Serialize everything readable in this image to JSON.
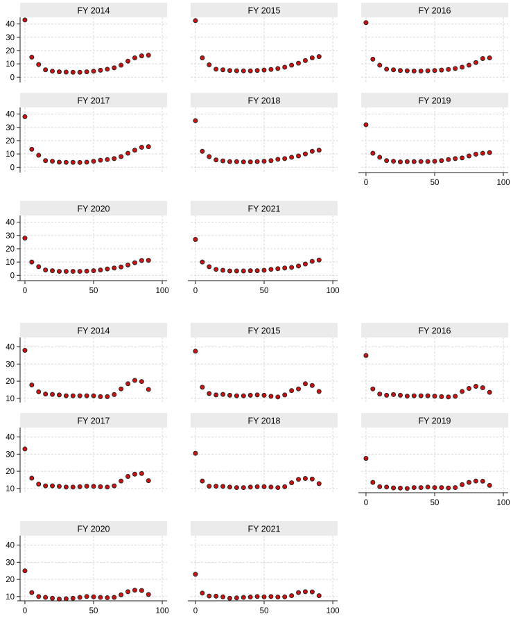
{
  "page": {
    "background": "#ffffff"
  },
  "style": {
    "marker_fill": "#cc1111",
    "marker_stroke": "#262626",
    "marker_radius": 3,
    "grid_color": "#d9d9d9",
    "axis_color": "#1a1a1a",
    "title_bg": "#ebebeb",
    "title_color": "#000000",
    "tick_label_color": "#000000"
  },
  "chart_data": [
    {
      "type": "scatter",
      "name": "panel-1",
      "x": [
        0,
        5,
        10,
        15,
        20,
        25,
        30,
        35,
        40,
        45,
        50,
        55,
        60,
        65,
        70,
        75,
        80,
        85,
        90
      ],
      "xlim": [
        -3.5,
        103.5
      ],
      "ylim": [
        -4,
        45
      ],
      "xticks": [
        0,
        50,
        100
      ],
      "yticks": [
        0,
        10,
        20,
        30,
        40
      ],
      "grid": true,
      "legend": null,
      "subplots": [
        {
          "title": "FY 2014",
          "y_axis": true,
          "x_axis": false,
          "values": [
            43,
            15,
            9.5,
            5.5,
            4.5,
            4,
            3.8,
            3.7,
            3.7,
            4,
            4.5,
            5.2,
            6,
            7,
            9,
            12,
            14.5,
            16,
            16.5
          ]
        },
        {
          "title": "FY 2015",
          "y_axis": false,
          "x_axis": false,
          "values": [
            42.5,
            14.5,
            9.3,
            6,
            5.5,
            5,
            4.8,
            4.7,
            4.7,
            5,
            5.3,
            5.8,
            6.5,
            7.5,
            9,
            10.5,
            12.5,
            14.5,
            15.5
          ]
        },
        {
          "title": "FY 2016",
          "y_axis": false,
          "x_axis": false,
          "values": [
            41,
            13.5,
            9,
            6,
            5.5,
            5,
            4.8,
            4.6,
            4.6,
            4.8,
            5,
            5.3,
            5.8,
            6.5,
            7.5,
            9,
            11,
            14,
            14.5
          ]
        },
        {
          "title": "FY 2017",
          "y_axis": true,
          "x_axis": false,
          "values": [
            38,
            13.5,
            9,
            5,
            4.5,
            3.8,
            3.7,
            3.7,
            3.6,
            3.8,
            4.5,
            5.3,
            5.8,
            6.5,
            8,
            10.5,
            12.8,
            15,
            15.5
          ]
        },
        {
          "title": "FY 2018",
          "y_axis": false,
          "x_axis": false,
          "values": [
            35,
            12,
            8,
            5.5,
            4.8,
            4.2,
            4.2,
            4,
            4,
            4.2,
            4.5,
            5,
            6,
            6.5,
            7.5,
            8.5,
            10,
            12,
            12.8
          ]
        },
        {
          "title": "FY 2019",
          "y_axis": false,
          "x_axis": true,
          "values": [
            32,
            10.5,
            7.5,
            5,
            4.5,
            4,
            4.2,
            4.2,
            4.3,
            4.3,
            4.5,
            5,
            5.8,
            6.5,
            7,
            8.5,
            9.8,
            10.5,
            11
          ]
        },
        {
          "title": "FY 2020",
          "y_axis": true,
          "x_axis": true,
          "values": [
            28,
            10,
            6.5,
            4,
            3.5,
            3,
            3,
            3,
            3,
            3.2,
            3.5,
            4,
            4.8,
            5.5,
            6.3,
            7.8,
            9.5,
            11.2,
            11.3
          ]
        },
        {
          "title": "FY 2021",
          "y_axis": false,
          "x_axis": true,
          "values": [
            27,
            10,
            6.5,
            4.5,
            3.8,
            3.3,
            3.3,
            3.3,
            3.5,
            3.5,
            3.8,
            4.5,
            5,
            5.5,
            6,
            7,
            8.5,
            10.5,
            11.5
          ]
        }
      ]
    },
    {
      "type": "scatter",
      "name": "panel-2",
      "x": [
        0,
        5,
        10,
        15,
        20,
        25,
        30,
        35,
        40,
        45,
        50,
        55,
        60,
        65,
        70,
        75,
        80,
        85,
        90
      ],
      "xlim": [
        -3.5,
        103.5
      ],
      "ylim": [
        7.5,
        45.5
      ],
      "xticks": [
        0,
        50,
        100
      ],
      "yticks": [
        10,
        20,
        30,
        40
      ],
      "grid": true,
      "legend": null,
      "subplots": [
        {
          "title": "FY 2014",
          "y_axis": true,
          "x_axis": false,
          "values": [
            38,
            17.8,
            13.8,
            12.5,
            12.3,
            12,
            11.5,
            11.5,
            11.5,
            11.5,
            11.5,
            11,
            11,
            12.2,
            15.5,
            18.5,
            20.5,
            19.8,
            15.2
          ]
        },
        {
          "title": "FY 2015",
          "y_axis": false,
          "x_axis": false,
          "values": [
            37.5,
            16.5,
            12.8,
            12,
            12.3,
            11.8,
            11.5,
            11.5,
            11.8,
            12,
            11.8,
            11.2,
            10.8,
            12,
            14.5,
            15.5,
            18.5,
            17.5,
            14
          ]
        },
        {
          "title": "FY 2016",
          "y_axis": false,
          "x_axis": false,
          "values": [
            35,
            15.5,
            12.5,
            11.8,
            12.2,
            11.8,
            11.3,
            11.5,
            11.5,
            11.5,
            11.3,
            11,
            10.8,
            11.2,
            14,
            15.8,
            17,
            16.2,
            13.5
          ]
        },
        {
          "title": "FY 2017",
          "y_axis": true,
          "x_axis": false,
          "values": [
            33,
            16,
            12.5,
            11.5,
            11.5,
            11.2,
            10.8,
            10.8,
            11,
            11.3,
            11.2,
            11,
            10.8,
            11.5,
            14.3,
            17,
            18.3,
            18.7,
            14.5
          ]
        },
        {
          "title": "FY 2018",
          "y_axis": false,
          "x_axis": false,
          "values": [
            30.5,
            14.3,
            11.3,
            11.3,
            11.2,
            10.8,
            10.5,
            10.5,
            10.8,
            11,
            11,
            10.8,
            10.5,
            11,
            13.3,
            15.3,
            15.8,
            15.5,
            12.8
          ]
        },
        {
          "title": "FY 2019",
          "y_axis": false,
          "x_axis": true,
          "values": [
            27.5,
            13.5,
            11,
            10.8,
            10.3,
            10.2,
            10,
            10.5,
            10.5,
            10.8,
            10.5,
            10.5,
            10.3,
            10.5,
            12.2,
            13.5,
            14.3,
            14.2,
            11.8
          ]
        },
        {
          "title": "FY 2020",
          "y_axis": true,
          "x_axis": true,
          "values": [
            25,
            12.3,
            10,
            9.5,
            9,
            8.5,
            8.7,
            9,
            9.5,
            10,
            9.8,
            9.5,
            9.3,
            9.5,
            11,
            12.8,
            13.7,
            13.5,
            11.2
          ]
        },
        {
          "title": "FY 2021",
          "y_axis": false,
          "x_axis": true,
          "values": [
            23,
            12,
            10.3,
            10.2,
            9.8,
            9,
            9.2,
            9.5,
            9.7,
            10,
            9.8,
            10,
            9.7,
            9.8,
            10.5,
            12.3,
            12.8,
            12.7,
            10.5
          ]
        }
      ]
    }
  ]
}
